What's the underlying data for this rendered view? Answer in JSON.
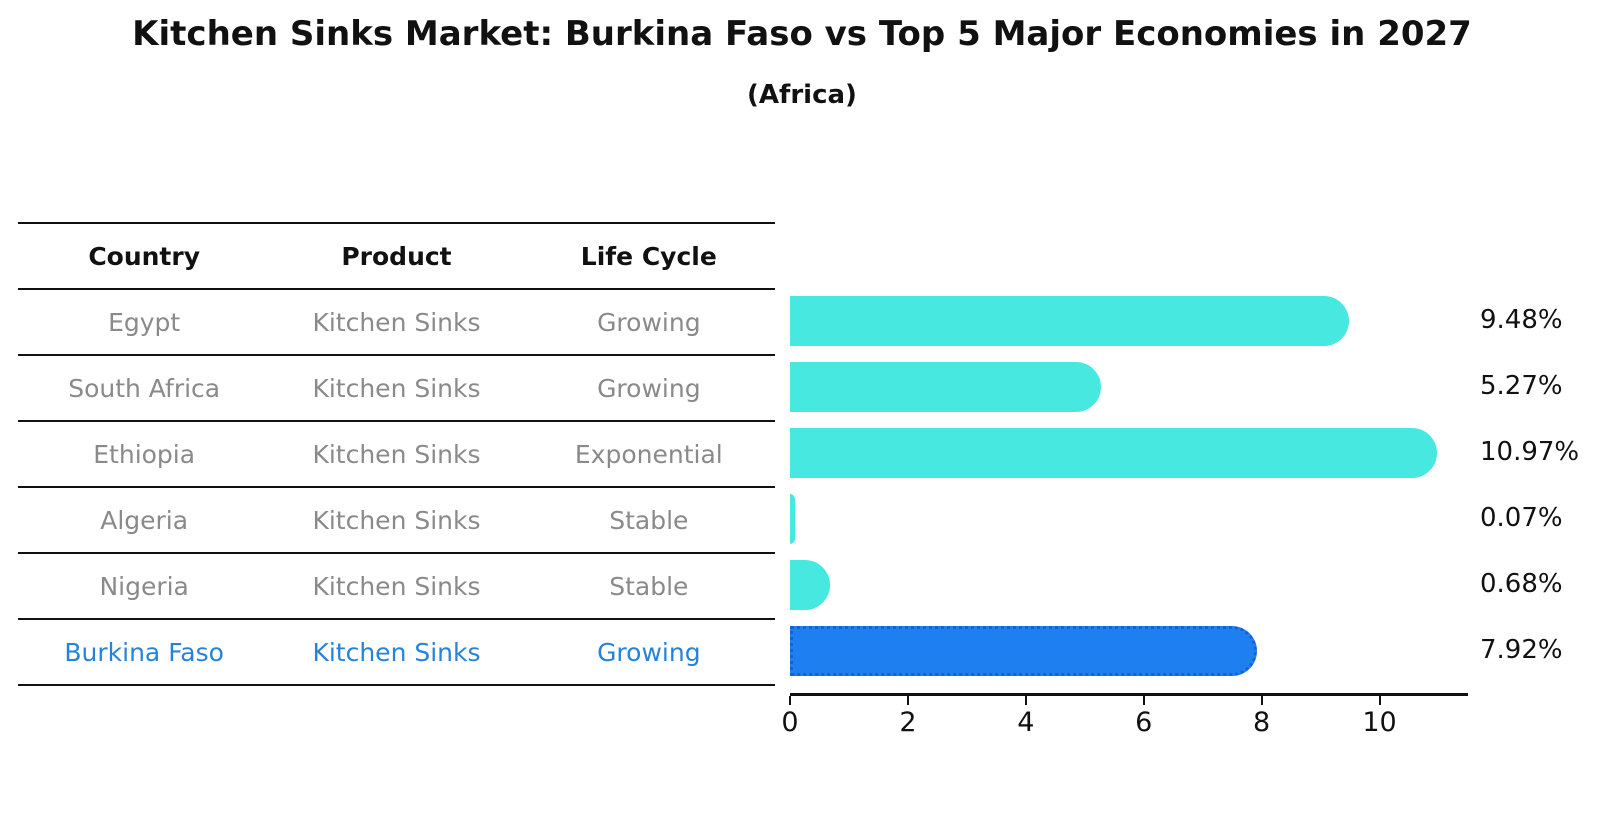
{
  "title": "Kitchen Sinks Market: Burkina Faso vs Top 5 Major Economies in 2027",
  "subtitle": "(Africa)",
  "table": {
    "headers": [
      "Country",
      "Product",
      "Life Cycle"
    ],
    "rows": [
      {
        "country": "Egypt",
        "product": "Kitchen Sinks",
        "life_cycle": "Growing",
        "highlight": false
      },
      {
        "country": "South Africa",
        "product": "Kitchen Sinks",
        "life_cycle": "Growing",
        "highlight": false
      },
      {
        "country": "Ethiopia",
        "product": "Kitchen Sinks",
        "life_cycle": "Exponential",
        "highlight": false
      },
      {
        "country": "Algeria",
        "product": "Kitchen Sinks",
        "life_cycle": "Stable",
        "highlight": false
      },
      {
        "country": "Nigeria",
        "product": "Kitchen Sinks",
        "life_cycle": "Stable",
        "highlight": false
      },
      {
        "country": "Burkina Faso",
        "product": "Kitchen Sinks",
        "life_cycle": "Growing",
        "highlight": true
      }
    ]
  },
  "chart_data": {
    "type": "bar",
    "orientation": "horizontal",
    "categories": [
      "Egypt",
      "South Africa",
      "Ethiopia",
      "Algeria",
      "Nigeria",
      "Burkina Faso"
    ],
    "values": [
      9.48,
      5.27,
      10.97,
      0.07,
      0.68,
      7.92
    ],
    "value_labels": [
      "9.48%",
      "5.27%",
      "10.97%",
      "0.07%",
      "0.68%",
      "7.92%"
    ],
    "highlight_index": 5,
    "xlim": [
      0,
      11.5
    ],
    "x_ticks": [
      0,
      2,
      4,
      6,
      8,
      10
    ],
    "grid": false,
    "legend": false,
    "colors": {
      "default_bar": "#47e8e0",
      "highlight_bar": "#1e80f0",
      "highlight_bar_border": "#1563cf",
      "highlight_text": "#2583db",
      "row_text": "#8a8a8a",
      "axis": "#111111"
    }
  }
}
